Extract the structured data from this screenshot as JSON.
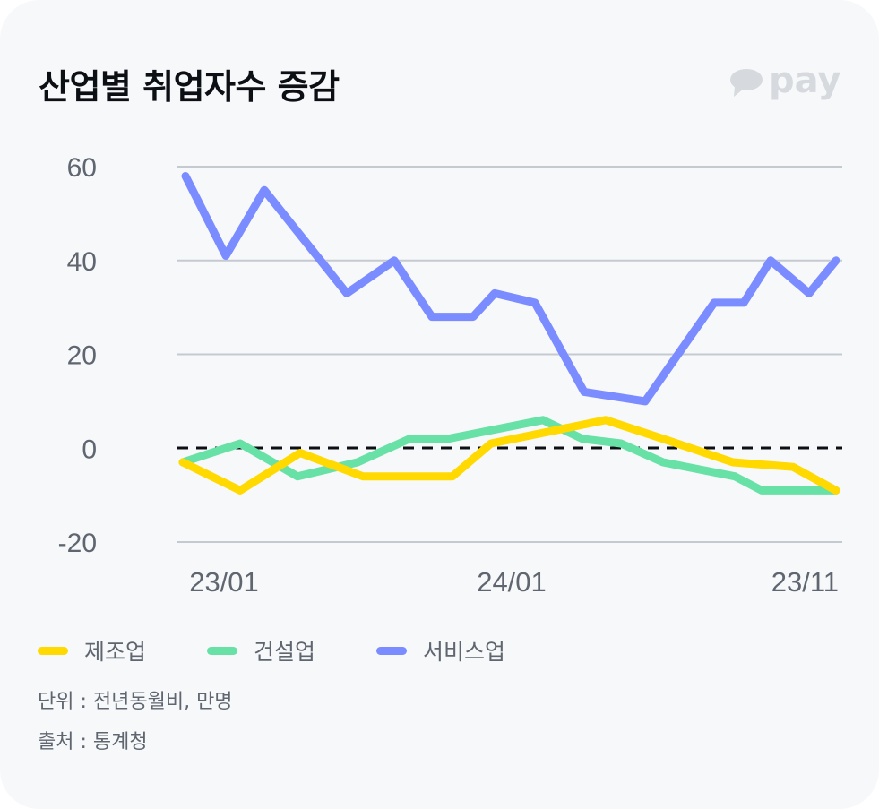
{
  "header": {
    "title": "산업별 취업자수 증감",
    "logo_text": "pay",
    "logo_icon": "speech-bubble-icon"
  },
  "colors": {
    "manufacturing": "#ffd900",
    "construction": "#68e1a6",
    "service": "#7a8cff",
    "zero_line": "#0c0f14",
    "grid": "#c5cad1",
    "background": "#f7f8fa"
  },
  "legend": [
    {
      "label": "제조업",
      "color": "#ffd900"
    },
    {
      "label": "건설업",
      "color": "#68e1a6"
    },
    {
      "label": "서비스업",
      "color": "#7a8cff"
    }
  ],
  "notes": {
    "unit": "단위 : 전년동월비, 만명",
    "source": "출처 : 통계청"
  },
  "chart_data": {
    "type": "line",
    "title": "산업별 취업자수 증감",
    "xlabel": "",
    "ylabel": "",
    "ylim": [
      -20,
      60
    ],
    "yticks": [
      "60",
      "40",
      "20",
      "0",
      "-20"
    ],
    "xtick_labels": [
      "23/01",
      "24/01",
      "23/11"
    ],
    "grid": true,
    "zero_line": "dashed",
    "legend_position": "bottom",
    "series": [
      {
        "name": "서비스업",
        "color": "#7a8cff",
        "points": [
          [
            207,
            58
          ],
          [
            252,
            41
          ],
          [
            295,
            55
          ],
          [
            341,
            44
          ],
          [
            387,
            33
          ],
          [
            440,
            40
          ],
          [
            482,
            28
          ],
          [
            528,
            28
          ],
          [
            552,
            33
          ],
          [
            597,
            31
          ],
          [
            652,
            12
          ],
          [
            720,
            10
          ],
          [
            797,
            31
          ],
          [
            830,
            31
          ],
          [
            860,
            40
          ],
          [
            903,
            33
          ],
          [
            933,
            40
          ]
        ]
      },
      {
        "name": "건설업",
        "color": "#68e1a6",
        "points": [
          [
            204,
            -3
          ],
          [
            268,
            1
          ],
          [
            332,
            -6
          ],
          [
            399,
            -3
          ],
          [
            457,
            2
          ],
          [
            500,
            2
          ],
          [
            606,
            6
          ],
          [
            650,
            2
          ],
          [
            693,
            1
          ],
          [
            740,
            -3
          ],
          [
            820,
            -6
          ],
          [
            850,
            -9
          ],
          [
            933,
            -9
          ]
        ]
      },
      {
        "name": "제조업",
        "color": "#ffd900",
        "points": [
          [
            204,
            -3
          ],
          [
            268,
            -9
          ],
          [
            335,
            -1
          ],
          [
            405,
            -6
          ],
          [
            505,
            -6
          ],
          [
            548,
            1
          ],
          [
            676,
            6
          ],
          [
            740,
            2
          ],
          [
            818,
            -3
          ],
          [
            885,
            -4
          ],
          [
            933,
            -9
          ]
        ]
      }
    ]
  }
}
